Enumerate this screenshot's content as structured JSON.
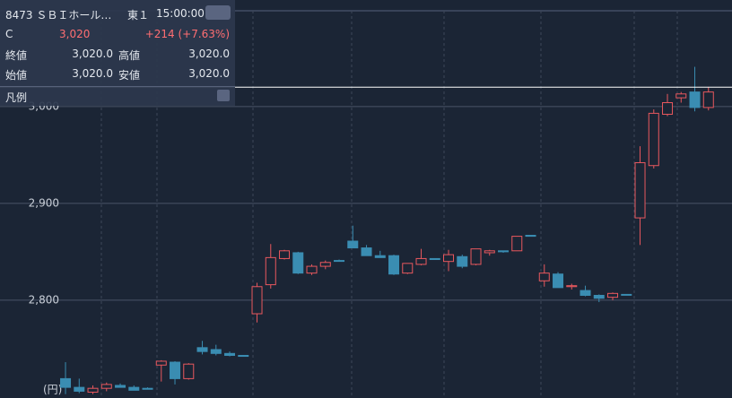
{
  "chart_data": {
    "type": "candlestick",
    "y_unit_label": "(円)",
    "categories": [
      null,
      null,
      null,
      null,
      null,
      null,
      null,
      null,
      null,
      null,
      null,
      null,
      null,
      null,
      null,
      null,
      null,
      null,
      null,
      null,
      null,
      null,
      null,
      null,
      null,
      null,
      null,
      null,
      null,
      null,
      null,
      null,
      null,
      null,
      null,
      null,
      null,
      null,
      null,
      null,
      null,
      null,
      null,
      null,
      null,
      null,
      null,
      null
    ],
    "open": [
      2719,
      2710,
      2705,
      2709,
      2712,
      2710,
      2709,
      2733,
      2736,
      2719,
      2751,
      2749,
      2745,
      2743,
      2786,
      2816,
      2843,
      2849,
      2828,
      2835,
      2841,
      2861,
      2854,
      2846,
      2846,
      2828,
      2837,
      2843,
      2840,
      2845,
      2837,
      2849,
      2851,
      2851,
      2867,
      2820,
      2827,
      2814,
      2810,
      2805,
      2803,
      2806,
      2885,
      2939,
      2992,
      3009,
      3015,
      2999
    ],
    "high": [
      2736,
      2719,
      2712,
      2715,
      2714,
      2712,
      2710,
      2738,
      2737,
      2735,
      2758,
      2754,
      2747,
      2743,
      2818,
      2858,
      2852,
      2850,
      2837,
      2841,
      2842,
      2877,
      2857,
      2851,
      2847,
      2838,
      2853,
      2843,
      2852,
      2847,
      2853,
      2852,
      2851,
      2866,
      2867,
      2837,
      2829,
      2817,
      2815,
      2806,
      2808,
      2806,
      2959,
      2997,
      3013,
      3015,
      3041,
      3020
    ],
    "low": [
      2703,
      2704,
      2703,
      2706,
      2710,
      2707,
      2708,
      2716,
      2713,
      2718,
      2744,
      2743,
      2742,
      2742,
      2777,
      2812,
      2842,
      2827,
      2826,
      2832,
      2841,
      2854,
      2846,
      2844,
      2826,
      2827,
      2836,
      2842,
      2830,
      2833,
      2836,
      2846,
      2849,
      2851,
      2866,
      2814,
      2813,
      2811,
      2804,
      2798,
      2800,
      2806,
      2857,
      2936,
      2990,
      3004,
      2995,
      2996
    ],
    "close": [
      2710,
      2706,
      2709,
      2713,
      2710,
      2707,
      2708,
      2737,
      2719,
      2734,
      2747,
      2745,
      2743,
      2742,
      2814,
      2844,
      2851,
      2828,
      2835,
      2839,
      2841,
      2854,
      2846,
      2844,
      2827,
      2838,
      2843,
      2842,
      2847,
      2835,
      2853,
      2851,
      2850,
      2866,
      2866,
      2828,
      2813,
      2815,
      2805,
      2802,
      2807,
      2806,
      2942,
      2993,
      3004,
      3013,
      2999,
      3015
    ],
    "up_color": "#e8585e",
    "down_color": "#3a8db2",
    "price_line": 3020,
    "ylim": [
      2699,
      3110
    ],
    "yticks": [
      {
        "value": 2800,
        "label": "2,800"
      },
      {
        "value": 2900,
        "label": "2,900"
      },
      {
        "value": 3000,
        "label": "3,000"
      }
    ],
    "grid": true
  },
  "panel": {
    "symbol": "8473 ＳＢＩホール…",
    "market": "東１",
    "time": "15:00:00",
    "price_tag": "C",
    "price": "3,020",
    "change": "+214 (+7.63%)",
    "rows": [
      [
        "終値",
        "3,020.0",
        "高値",
        "3,020.0"
      ],
      [
        "始値",
        "3,020.0",
        "安値",
        "3,020.0"
      ]
    ],
    "legend": "凡例"
  }
}
